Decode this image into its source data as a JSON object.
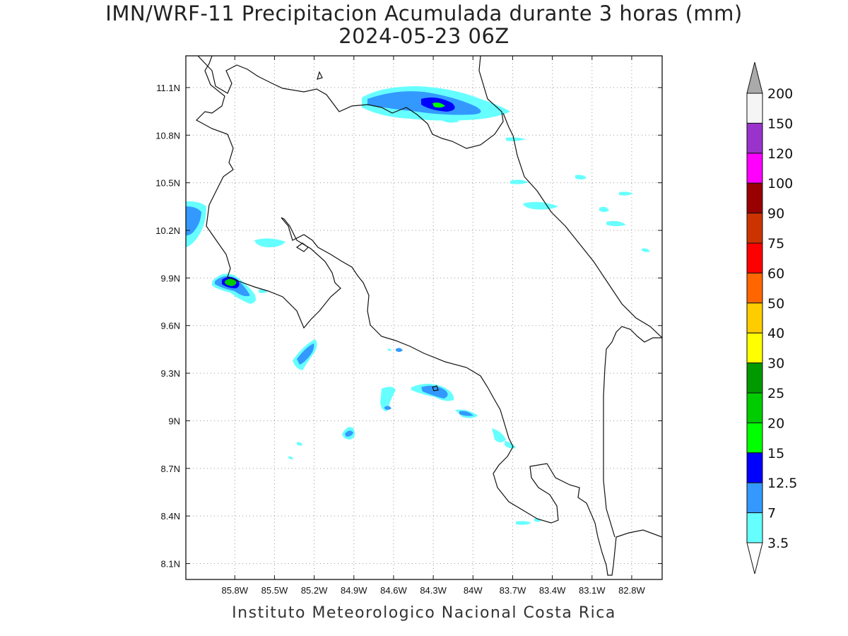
{
  "title_line1": "IMN/WRF-11 Precipitacion Acumulada durante 3 horas (mm)",
  "title_line2": "2024-05-23 06Z",
  "footer": "Instituto Meteorologico Nacional Costa Rica",
  "map": {
    "lon_range": [
      -86.17,
      -82.57
    ],
    "lat_range": [
      8.0,
      11.3
    ],
    "lon_ticks": [
      "85.8W",
      "85.5W",
      "85.2W",
      "84.9W",
      "84.6W",
      "84.3W",
      "84W",
      "83.7W",
      "83.4W",
      "83.1W",
      "82.8W"
    ],
    "lat_ticks": [
      "11.1N",
      "10.8N",
      "10.5N",
      "10.2N",
      "9.9N",
      "9.6N",
      "9.3N",
      "9N",
      "8.7N",
      "8.4N",
      "8.1N"
    ],
    "grid": true
  },
  "colorbar": {
    "labels": [
      "3.5",
      "7",
      "12.5",
      "15",
      "20",
      "25",
      "30",
      "40",
      "50",
      "60",
      "75",
      "90",
      "100",
      "120",
      "150",
      "200"
    ],
    "colors": [
      "#66ffff",
      "#3399ff",
      "#0000ff",
      "#00ff00",
      "#00cc00",
      "#009900",
      "#ffff00",
      "#ffcc00",
      "#ff6600",
      "#ff0000",
      "#cc3300",
      "#990000",
      "#ff00ff",
      "#9933cc",
      "#f5f5f5",
      "#aaaaaa"
    ]
  }
}
